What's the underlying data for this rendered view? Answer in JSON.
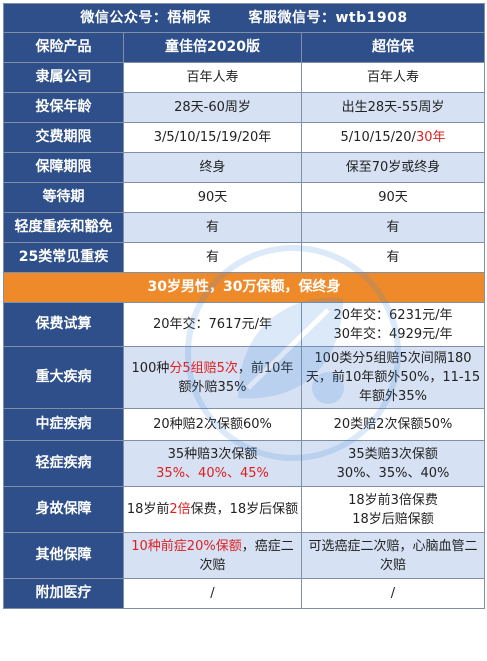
{
  "colors": {
    "header_bg": "#2e4f8a",
    "row_alt_bg": "#d6e1f3",
    "banner_bg": "#ee8a2a",
    "highlight_text": "#e02020"
  },
  "top": {
    "wechat_account": "微信公众号：梧桐保",
    "service_wechat": "客服微信号：wtb1908"
  },
  "header": {
    "label": "保险产品",
    "product1": "童佳倍2020版",
    "product2": "超倍保"
  },
  "rows": [
    {
      "label": "隶属公司",
      "p1": "百年人寿",
      "p2": "百年人寿"
    },
    {
      "label": "投保年龄",
      "p1": "28天-60周岁",
      "p2": "出生28天-55周岁"
    },
    {
      "label": "交费期限",
      "p1": "3/5/10/15/19/20年",
      "p2_a": "5/10/15/20/",
      "p2_red": "30年"
    },
    {
      "label": "保障期限",
      "p1": "终身",
      "p2": "保至70岁或终身"
    },
    {
      "label": "等待期",
      "p1": "90天",
      "p2": "90天"
    },
    {
      "label": "轻度重疾和豁免",
      "p1": "有",
      "p2": "有"
    },
    {
      "label": "25类常见重疾",
      "p1": "有",
      "p2": "有"
    }
  ],
  "banner": "30岁男性，30万保额，保终身",
  "premium": {
    "label": "保费试算",
    "p1": "20年交：7617元/年",
    "p2_line1": "20年交：6231元/年",
    "p2_line2": "30年交：4929元/年"
  },
  "critical": {
    "label": "重大疾病",
    "p1_a": "100种",
    "p1_red": "分5组赔5次",
    "p1_b": "，前10年额外赔35%",
    "p2": "100类分5组赔5次间隔180天，前10年额外50%，11-15年额外35%"
  },
  "moderate": {
    "label": "中症疾病",
    "p1": "20种赔2次保额60%",
    "p2": "20类赔2次保额50%"
  },
  "mild": {
    "label": "轻症疾病",
    "p1_line1": "35种赔3次保额",
    "p1_line2": "35%、40%、45%",
    "p2_line1": "35类赔3次保额",
    "p2_line2": "30%、35%、40%"
  },
  "death": {
    "label": "身故保障",
    "p1_a": "18岁前",
    "p1_red": "2倍",
    "p1_b": "保费，18岁后保额",
    "p2_line1": "18岁前3倍保费",
    "p2_line2": "18岁后赔保额"
  },
  "other": {
    "label": "其他保障",
    "p1_red": "10种前症20%保额",
    "p1_b": "，癌症二次赔",
    "p2": "可选癌症二次赔，心脑血管二次赔"
  },
  "medical": {
    "label": "附加医疗",
    "p1": "/",
    "p2": "/"
  },
  "watermark_icon": "paulownia-leaf-logo"
}
